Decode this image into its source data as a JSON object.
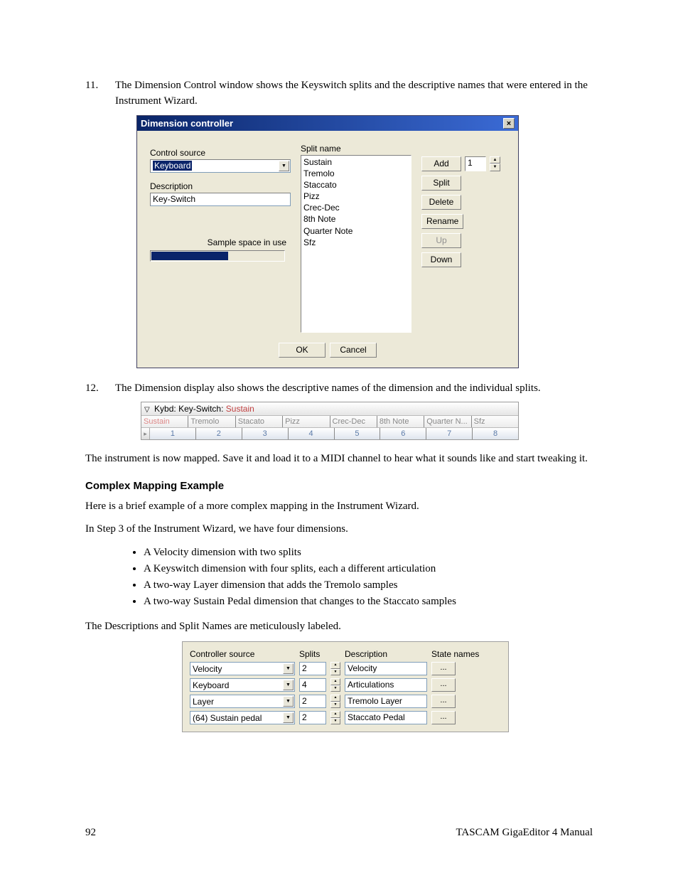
{
  "step11": {
    "num": "11.",
    "text": "The Dimension Control window shows the Keyswitch splits and the descriptive names that were entered in the Instrument Wizard."
  },
  "dialog": {
    "title": "Dimension controller",
    "controlSourceLabel": "Control source",
    "controlSourceValue": "Keyboard",
    "descriptionLabel": "Description",
    "descriptionValue": "Key-Switch",
    "sampleSpaceLabel": "Sample space in use",
    "progressPct": 58,
    "splitNameLabel": "Split name",
    "splits": [
      "Sustain",
      "Tremolo",
      "Staccato",
      "Pizz",
      "Crec-Dec",
      "8th Note",
      "Quarter Note",
      "Sfz"
    ],
    "buttons": {
      "add": "Add",
      "split": "Split",
      "delete": "Delete",
      "rename": "Rename",
      "up": "Up",
      "down": "Down"
    },
    "addValue": "1",
    "ok": "OK",
    "cancel": "Cancel"
  },
  "step12": {
    "num": "12.",
    "text": "The Dimension display also shows the descriptive names of the dimension and the individual splits."
  },
  "strip": {
    "headerPrefix": "Kybd: Key-Switch: ",
    "headerCurrent": "Sustain",
    "cells": [
      "Sustain",
      "Tremolo",
      "Stacato",
      "Pizz",
      "Crec-Dec",
      "8th Note",
      "Quarter N...",
      "Sfz"
    ],
    "nums": [
      "1",
      "2",
      "3",
      "4",
      "5",
      "6",
      "7",
      "8"
    ]
  },
  "p_after_strip": "The instrument is now mapped.  Save it and load it to a MIDI channel to hear what it sounds like and start tweaking it.",
  "heading": "Complex Mapping Example",
  "p_intro": "Here is a brief example of a more complex mapping in the Instrument Wizard.",
  "p_step3": "In Step 3 of the Instrument Wizard, we have four dimensions.",
  "bullets": [
    "A Velocity dimension with two splits",
    "A Keyswitch dimension with four splits, each a different articulation",
    "A two-way Layer dimension that adds the Tremolo samples",
    "A two-way Sustain Pedal dimension that changes to the Staccato samples"
  ],
  "p_labels": "The Descriptions and Split Names are meticulously labeled.",
  "ctrl": {
    "headers": {
      "src": "Controller source",
      "splits": "Splits",
      "desc": "Description",
      "state": "State names"
    },
    "rows": [
      {
        "src": "Velocity",
        "splits": "2",
        "desc": "Velocity"
      },
      {
        "src": "Keyboard",
        "splits": "4",
        "desc": "Articulations"
      },
      {
        "src": "Layer",
        "splits": "2",
        "desc": "Tremolo Layer"
      },
      {
        "src": "(64) Sustain pedal",
        "splits": "2",
        "desc": "Staccato Pedal"
      }
    ],
    "stateBtn": "..."
  },
  "footer": {
    "page": "92",
    "title": "TASCAM GigaEditor 4 Manual"
  }
}
